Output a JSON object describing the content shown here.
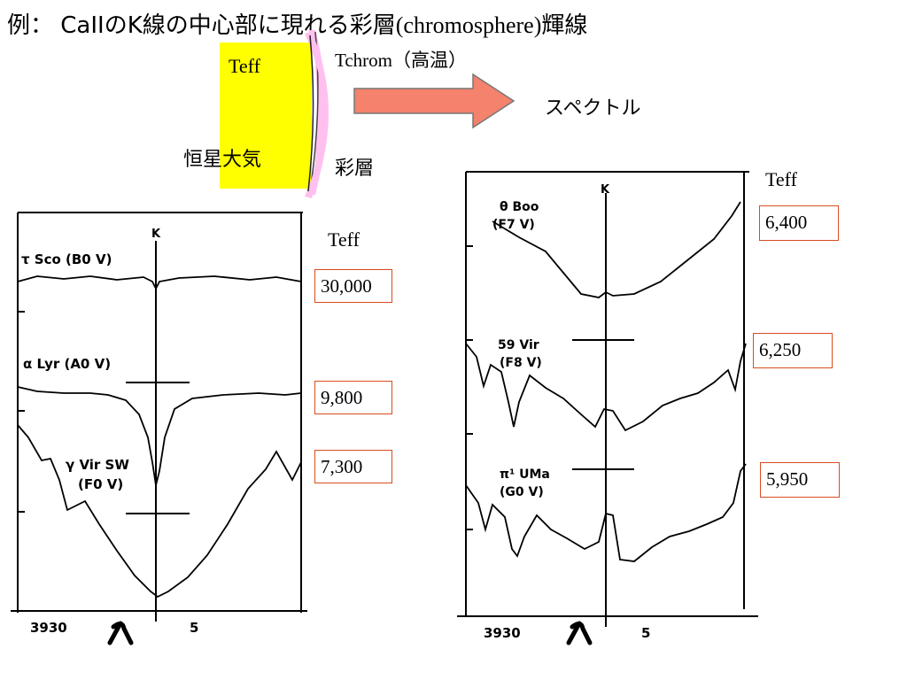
{
  "title": {
    "prefix": "例：",
    "main": "CaIIのK線の中心部に現れる彩層",
    "paren": "(chromosphere)",
    "suffix": "輝線"
  },
  "diagram": {
    "teff_label": "Teff",
    "tchrom_label": "Tchrom（高温）",
    "spectrum_label": "スペクトル",
    "atmosphere_label": "恒星大気",
    "chromosphere_label": "彩層",
    "colors": {
      "star": "#ffff00",
      "chromosphere": "#ffc0f0",
      "arrow": "#f4826c",
      "box_border": "#d84d1e"
    }
  },
  "left_panel": {
    "teff_header": "Teff",
    "k_label": "K",
    "stars": [
      {
        "name": "τ Sco (B0 V)",
        "teff": "30,000"
      },
      {
        "name": "α Lyr (A0 V)",
        "teff": "9,800"
      },
      {
        "name": "γ Vir SW",
        "name2": "(F0 V)",
        "teff": "7,300"
      }
    ],
    "axis": {
      "left": "3930",
      "right": "5"
    }
  },
  "right_panel": {
    "teff_header": "Teff",
    "k_label": "K",
    "stars": [
      {
        "name": "θ Boo",
        "name2": "(F7 V)",
        "teff": "6,400"
      },
      {
        "name": "59 Vir",
        "name2": "(F8 V)",
        "teff": "6,250"
      },
      {
        "name": "π¹ UMa",
        "name2": "(G0 V)",
        "teff": "5,950"
      }
    ],
    "axis": {
      "left": "3930",
      "right": "5"
    }
  }
}
